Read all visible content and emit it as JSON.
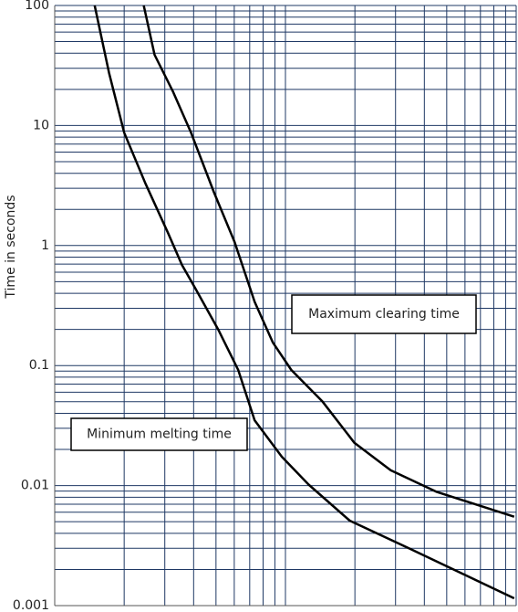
{
  "chart_data": {
    "type": "line",
    "log_x": true,
    "log_y": true,
    "grid": true,
    "ylabel": "Time in seconds",
    "xlim": [
      1,
      100
    ],
    "xticks": [
      1,
      2,
      3,
      4,
      5,
      6,
      7,
      8,
      9,
      10,
      20,
      30,
      40,
      50,
      60,
      70,
      80,
      90,
      100
    ],
    "ylim": [
      0.001,
      100
    ],
    "yticks": [
      0.001,
      0.01,
      0.1,
      1,
      10,
      100
    ],
    "annotations": [
      "Maximum clearing time",
      "Minimum melting time"
    ],
    "series": [
      {
        "color": "#000000",
        "x": [
          1.49,
          1.72,
          2.0,
          2.47,
          3.1,
          3.56,
          4.07,
          5.11,
          6.24,
          7.35,
          9.64,
          12.6,
          19.0,
          34.3,
          98
        ],
        "values": [
          100,
          27.4,
          8.7,
          3.3,
          1.27,
          0.69,
          0.44,
          0.2,
          0.092,
          0.035,
          0.0174,
          0.0102,
          0.0051,
          0.003,
          0.00115
        ]
      },
      {
        "color": "#000000",
        "x": [
          2.43,
          2.71,
          3.25,
          3.9,
          4.89,
          6.02,
          7.35,
          8.81,
          10.6,
          14.5,
          19.9,
          28.6,
          45,
          98
        ],
        "values": [
          100,
          38.8,
          19.3,
          8.7,
          2.8,
          1.07,
          0.34,
          0.156,
          0.092,
          0.05,
          0.0227,
          0.0134,
          0.0089,
          0.0055
        ]
      }
    ]
  }
}
